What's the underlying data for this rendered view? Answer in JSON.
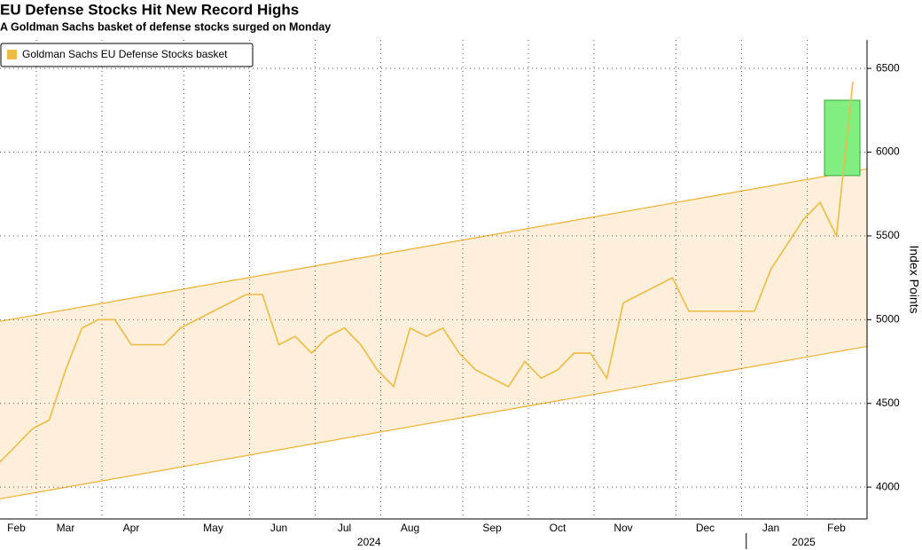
{
  "chart_data": {
    "type": "line",
    "title": "EU Defense Stocks Hit New Record Highs",
    "subtitle": "A Goldman Sachs basket of defense stocks surged on Monday",
    "y_axis_label": "Index Points",
    "categories": [
      null,
      "Feb",
      null,
      null,
      "Mar",
      null,
      null,
      null,
      "Apr",
      null,
      null,
      null,
      null,
      "May",
      null,
      null,
      null,
      "Jun",
      null,
      null,
      null,
      "Jul",
      null,
      null,
      null,
      "Aug",
      null,
      null,
      null,
      null,
      "Sep",
      null,
      null,
      null,
      "Oct",
      null,
      null,
      null,
      "Nov",
      null,
      null,
      null,
      null,
      "Dec",
      null,
      null,
      null,
      "Jan",
      null,
      null,
      null,
      "Feb",
      null
    ],
    "x_groups": [
      {
        "label": "2024",
        "span": [
          0,
          45
        ]
      },
      {
        "label": "2025",
        "span": [
          46,
          52
        ]
      }
    ],
    "series": [
      {
        "name": "Goldman Sachs EU Defense Stocks basket",
        "color": "#eebb44",
        "values": [
          4150,
          4250,
          4350,
          4400,
          4700,
          4950,
          5000,
          5000,
          4850,
          4850,
          4850,
          4950,
          5000,
          5050,
          5100,
          5150,
          5150,
          4850,
          4900,
          4800,
          4900,
          4950,
          4850,
          4700,
          4600,
          4950,
          4900,
          4950,
          4800,
          4700,
          4650,
          4600,
          4750,
          4650,
          4700,
          4800,
          4800,
          4650,
          5100,
          5150,
          5200,
          5250,
          5050,
          5050,
          5050,
          5050,
          5050,
          5300,
          5450,
          5600,
          5700,
          5500,
          6420
        ]
      }
    ],
    "channel": {
      "upper": [
        4990,
        5885
      ],
      "lower": [
        3930,
        4825
      ],
      "line_color": "#f0b030",
      "fill": "#fdebd0"
    },
    "highlight": {
      "y": [
        5860,
        6310
      ],
      "color": "#80ee80"
    },
    "ylim": [
      3810,
      6670
    ],
    "yticks": [
      4000,
      4500,
      5000,
      5500,
      6000,
      6500
    ],
    "grid": true,
    "legend": "top-left"
  }
}
